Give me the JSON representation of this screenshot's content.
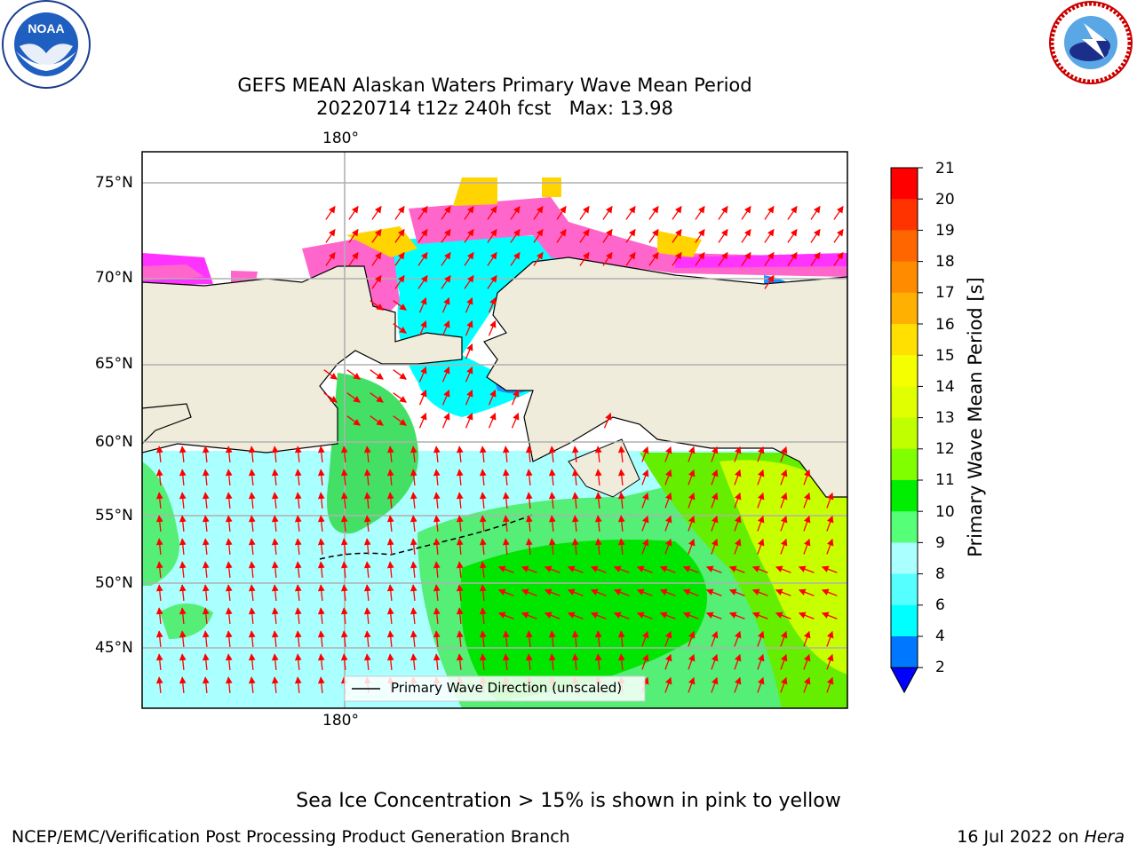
{
  "title_line1": "GEFS MEAN Alaskan Waters Primary Wave Mean Period",
  "title_line2": "20220714 t12z 240h fcst   Max: 13.98",
  "axes": {
    "top_lon_label": "180°",
    "bottom_lon_label": "180°",
    "lat_labels": [
      "75°N",
      "70°N",
      "65°N",
      "60°N",
      "55°N",
      "50°N",
      "45°N"
    ]
  },
  "legend": {
    "label": "Primary Wave Direction (unscaled)"
  },
  "colorbar": {
    "label": "Primary Wave Mean Period [s]",
    "ticks": [
      "21",
      "20",
      "19",
      "18",
      "17",
      "16",
      "15",
      "14",
      "13",
      "12",
      "11",
      "10",
      "9",
      "8",
      "6",
      "4",
      "2"
    ],
    "colors": [
      "#ff0000",
      "#ff3300",
      "#ff6600",
      "#ff8c00",
      "#ffb000",
      "#ffe000",
      "#f6ff00",
      "#e0ff00",
      "#c0ff00",
      "#80ff00",
      "#00ee00",
      "#55ff77",
      "#aaffff",
      "#55ffff",
      "#00ffff",
      "#0077ff"
    ],
    "extend_color": "#0000ff"
  },
  "footnote": "Sea Ice Concentration > 15% is shown in pink to yellow",
  "footer": {
    "left": "NCEP/EMC/Verification Post Processing Product Generation Branch",
    "date": "16 Jul 2022 on ",
    "system": "Hera"
  },
  "logos": {
    "left": "NOAA",
    "right": "NATIONAL WEATHER SERVICE"
  },
  "palette": {
    "land": "#efecdc",
    "ocean_base": "#aaffff",
    "ice_pink": "#ff66cc",
    "ice_magenta": "#ff33ff",
    "ice_yellow": "#ffd400",
    "arrow": "#ff0000",
    "grid": "#b0b0b0"
  }
}
